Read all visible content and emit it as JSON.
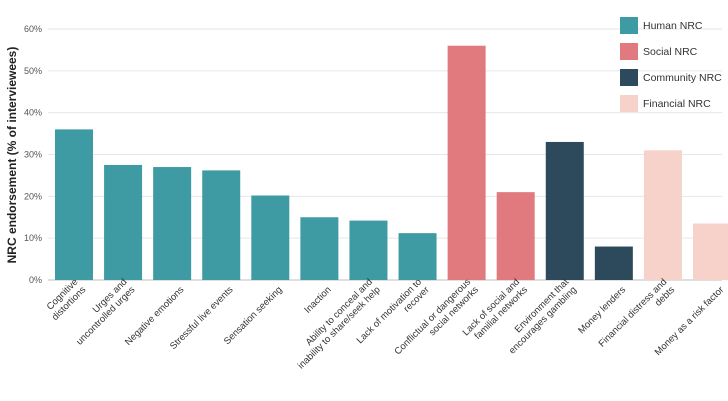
{
  "chart_data": {
    "type": "bar",
    "title": "",
    "xlabel": "",
    "ylabel": "NRC endorsement (% of interviewees)",
    "ylim": [
      0,
      60
    ],
    "yticks": [
      "0%",
      "10%",
      "20%",
      "30%",
      "40%",
      "50%",
      "60%"
    ],
    "grid": true,
    "legend_position": "top-right",
    "series": [
      {
        "name": "Human NRC",
        "color": "#3e9aa3"
      },
      {
        "name": "Social NRC",
        "color": "#e07a7f"
      },
      {
        "name": "Community NRC",
        "color": "#2c4a5c"
      },
      {
        "name": "Financial NRC",
        "color": "#f6d2cb"
      }
    ],
    "bars": [
      {
        "category": "Cognitive distortions",
        "lines": [
          "Cognitive",
          "distortions"
        ],
        "value": 36,
        "series": 0
      },
      {
        "category": "Urges and uncontrolled urges",
        "lines": [
          "Urges and",
          "uncontrolled urges"
        ],
        "value": 27.5,
        "series": 0
      },
      {
        "category": "Negative emotions",
        "lines": [
          "Negative emotions"
        ],
        "value": 27,
        "series": 0
      },
      {
        "category": "Stressful live events",
        "lines": [
          "Stressful live events"
        ],
        "value": 26.2,
        "series": 0
      },
      {
        "category": "Sensation seeking",
        "lines": [
          "Sensation seeking"
        ],
        "value": 20.2,
        "series": 0
      },
      {
        "category": "Inaction",
        "lines": [
          "Inaction"
        ],
        "value": 15,
        "series": 0
      },
      {
        "category": "Ability to conceal and inability to share/seek help",
        "lines": [
          "Ability to conceal and",
          "inability to share/seek help"
        ],
        "value": 14.2,
        "series": 0
      },
      {
        "category": "Lack of motivation to recover",
        "lines": [
          "Lack of motivation to",
          "recover"
        ],
        "value": 11.2,
        "series": 0
      },
      {
        "category": "Conflictual or dangerous social networks",
        "lines": [
          "Conflictual or dangerous",
          "social networks"
        ],
        "value": 56,
        "series": 1
      },
      {
        "category": "Lack of social and familial networks",
        "lines": [
          "Lack of social and",
          "familial networks"
        ],
        "value": 21,
        "series": 1
      },
      {
        "category": "Environment that encourages gambling",
        "lines": [
          "Environment that",
          "encourages gambling"
        ],
        "value": 33,
        "series": 2
      },
      {
        "category": "Money lenders",
        "lines": [
          "Money lenders"
        ],
        "value": 8,
        "series": 2
      },
      {
        "category": "Financial distress and debts",
        "lines": [
          "Financial distress and",
          "debts"
        ],
        "value": 31,
        "series": 3
      },
      {
        "category": "Money as a risk factor",
        "lines": [
          "Money as a risk factor"
        ],
        "value": 13.5,
        "series": 3
      }
    ]
  }
}
